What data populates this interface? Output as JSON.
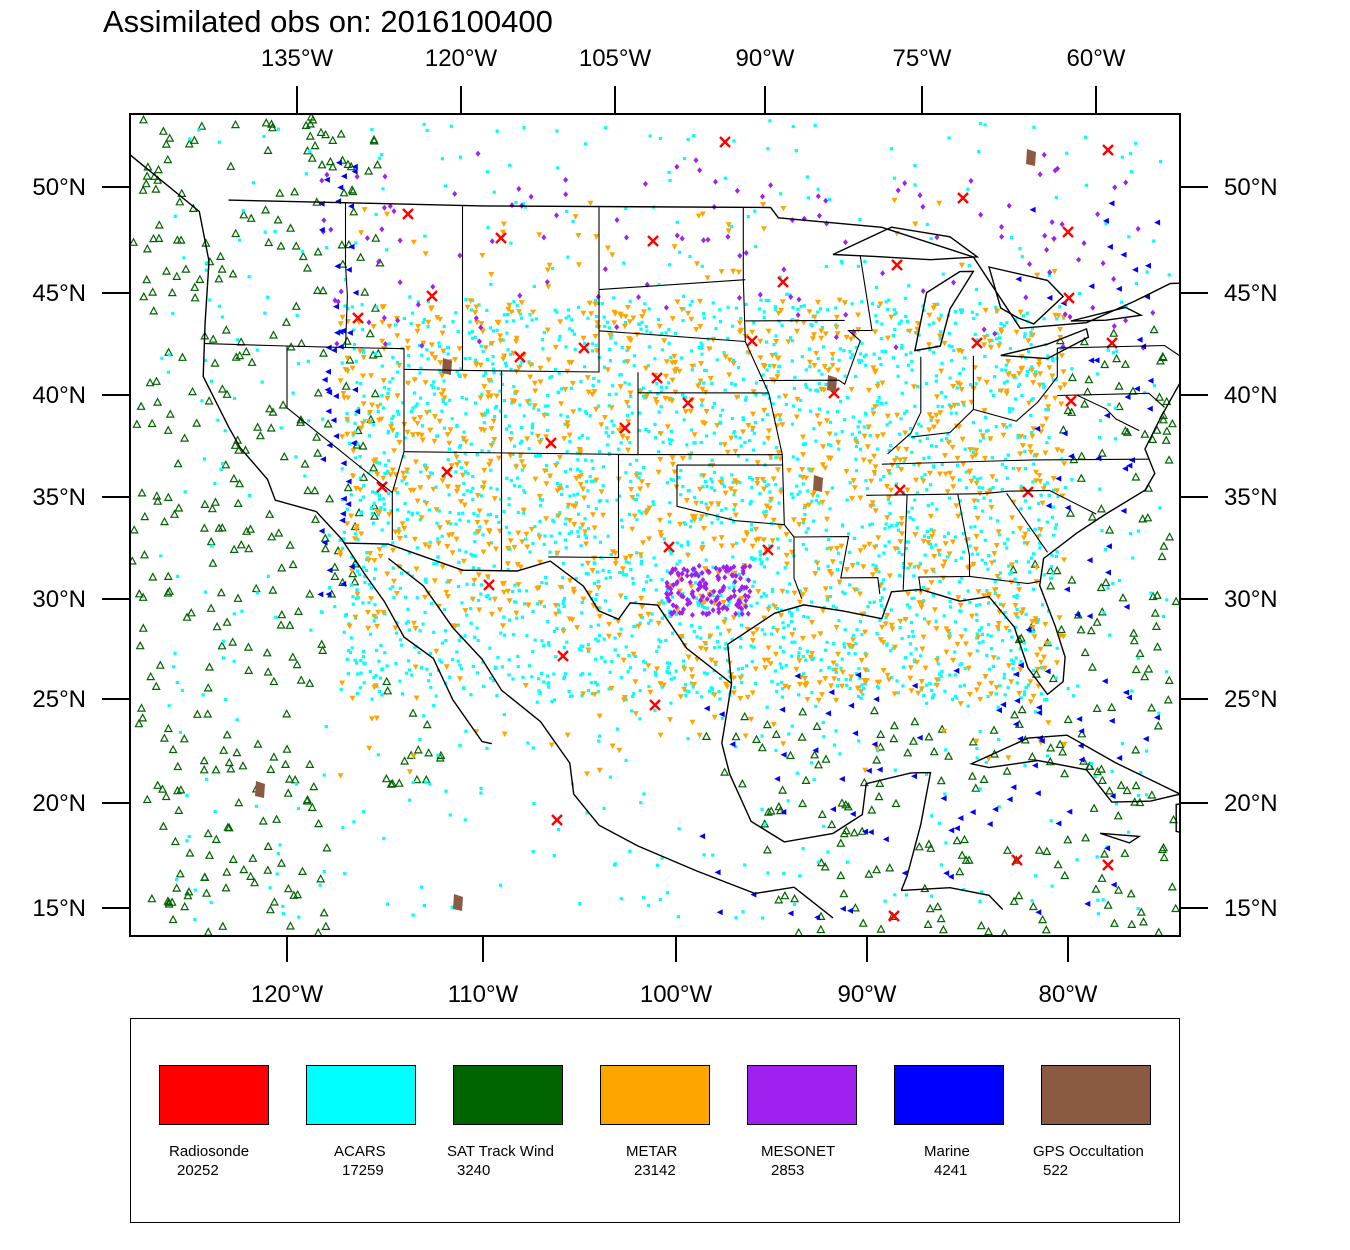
{
  "title": "Assimilated obs on: 2016100400",
  "map": {
    "lat_range": [
      14,
      53
    ],
    "lon_range": [
      -128,
      -74
    ],
    "top_lon_ticks": [
      {
        "lon": -135,
        "label": "135°W"
      },
      {
        "lon": -120,
        "label": "120°W"
      },
      {
        "lon": -105,
        "label": "105°W"
      },
      {
        "lon": -90,
        "label": "90°W"
      },
      {
        "lon": -75,
        "label": "75°W"
      },
      {
        "lon": -60,
        "label": "60°W"
      }
    ],
    "bottom_lon_ticks": [
      {
        "lon": -120,
        "label": "120°W"
      },
      {
        "lon": -110,
        "label": "110°W"
      },
      {
        "lon": -100,
        "label": "100°W"
      },
      {
        "lon": -90,
        "label": "90°W"
      },
      {
        "lon": -80,
        "label": "80°W"
      }
    ],
    "lat_ticks": [
      {
        "lat": 50,
        "label": "50°N"
      },
      {
        "lat": 45,
        "label": "45°N"
      },
      {
        "lat": 40,
        "label": "40°N"
      },
      {
        "lat": 35,
        "label": "35°N"
      },
      {
        "lat": 30,
        "label": "30°N"
      },
      {
        "lat": 25,
        "label": "25°N"
      },
      {
        "lat": 20,
        "label": "20°N"
      },
      {
        "lat": 15,
        "label": "15°N"
      }
    ]
  },
  "legend": [
    {
      "name": "Radiosonde",
      "count": "20252",
      "color": "#ff0000",
      "marker": "x"
    },
    {
      "name": "ACARS",
      "count": "17259",
      "color": "#00ffff",
      "marker": "dot"
    },
    {
      "name": "SAT Track Wind",
      "count": "3240",
      "color": "#006400",
      "marker": "triangle-up"
    },
    {
      "name": "METAR",
      "count": "23142",
      "color": "#ffa500",
      "marker": "triangle-down"
    },
    {
      "name": "MESONET",
      "count": "2853",
      "color": "#a020f0",
      "marker": "diamond"
    },
    {
      "name": "Marine",
      "count": "4241",
      "color": "#0000ff",
      "marker": "triangle-left"
    },
    {
      "name": "GPS Occultation",
      "count": "522",
      "color": "#8b5a43",
      "marker": "blob"
    }
  ]
}
